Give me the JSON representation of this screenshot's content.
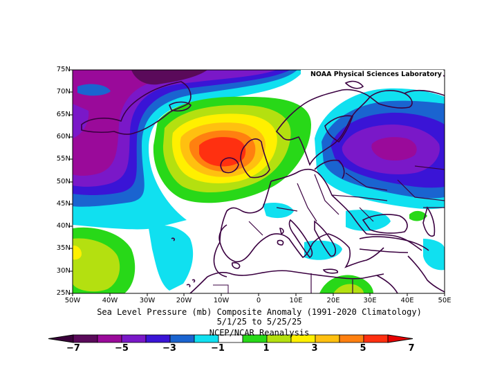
{
  "map": {
    "credit": "NOAA Physical Sciences Laboratory",
    "title": "Sea Level Pressure (mb) Composite Anomaly (1991-2020 Climatology)",
    "date_range": "5/1/25  to 5/25/25",
    "source": "NCEP/NCAR Reanalysis",
    "lat_labels": [
      "75N",
      "70N",
      "65N",
      "60N",
      "55N",
      "50N",
      "45N",
      "40N",
      "35N",
      "30N",
      "25N"
    ],
    "lon_labels": [
      "50W",
      "40W",
      "30W",
      "20W",
      "10W",
      "0",
      "10E",
      "20E",
      "30E",
      "40E",
      "50E"
    ],
    "colorbar": {
      "ticks": [
        "−7",
        "−5",
        "−3",
        "−1",
        "1",
        "3",
        "5",
        "7"
      ],
      "colors": [
        "#5a0a5a",
        "#9a0a9a",
        "#7a18c8",
        "#3a14d6",
        "#1a64d0",
        "#10e0f0",
        "#ffffff",
        "#28d818",
        "#b4e010",
        "#fff000",
        "#ffc010",
        "#ff8010",
        "#ff3010"
      ],
      "low_arrow_color": "#3a003a",
      "high_arrow_color": "#e80000"
    },
    "features": {
      "high_center": "positive anomaly over British Isles (~+7 mb)",
      "low_center": "negative anomaly over western Russia (~−5 mb)"
    }
  }
}
